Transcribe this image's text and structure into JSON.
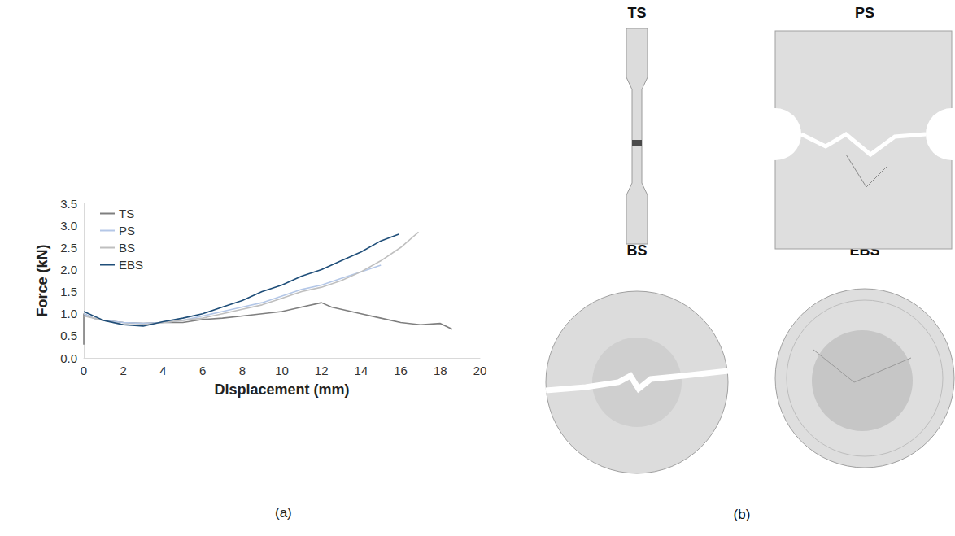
{
  "chart_data": {
    "type": "line",
    "panel_label": "(a)",
    "x_label": "Displacement (mm)",
    "y_label": "Force (kN)",
    "xlim": [
      0,
      20
    ],
    "xticks": [
      0,
      2,
      4,
      6,
      8,
      10,
      12,
      14,
      16,
      18,
      20
    ],
    "ylim": [
      0,
      3.5
    ],
    "yticks": [
      {
        "value": 0,
        "label": "0.0"
      },
      0.5,
      {
        "value": 1,
        "label": "1.0"
      },
      1.5,
      {
        "value": 2,
        "label": "2.0"
      },
      2.5,
      {
        "value": 3,
        "label": "3.0"
      },
      3.5
    ],
    "grid": false,
    "legend": "top-left",
    "series": [
      {
        "name": "TS",
        "color": "#7f7f7f",
        "x": [
          0,
          0,
          0.5,
          1,
          2,
          3,
          4,
          5,
          6,
          7,
          8,
          9,
          10,
          11,
          12,
          12.5,
          13.5,
          14,
          15,
          16,
          17,
          18,
          18.6
        ],
        "values": [
          0.3,
          1.0,
          0.9,
          0.85,
          0.8,
          0.78,
          0.8,
          0.8,
          0.87,
          0.9,
          0.95,
          1.0,
          1.05,
          1.15,
          1.25,
          1.15,
          1.05,
          1.0,
          0.9,
          0.8,
          0.75,
          0.78,
          0.65
        ]
      },
      {
        "name": "PS",
        "color": "#b4c7e7",
        "x": [
          0,
          0.5,
          1,
          2,
          3,
          4,
          5,
          6,
          7,
          8,
          9,
          10,
          11,
          12,
          13,
          14,
          15
        ],
        "values": [
          1.0,
          0.9,
          0.85,
          0.8,
          0.78,
          0.8,
          0.85,
          0.95,
          1.05,
          1.15,
          1.25,
          1.4,
          1.55,
          1.65,
          1.8,
          1.95,
          2.1
        ]
      },
      {
        "name": "BS",
        "color": "#bfbfbf",
        "x": [
          0,
          1,
          2,
          3,
          4,
          5,
          6,
          7,
          8,
          9,
          10,
          11,
          12,
          13,
          14,
          15,
          16,
          16.9
        ],
        "values": [
          0.95,
          0.85,
          0.75,
          0.75,
          0.8,
          0.85,
          0.9,
          1.0,
          1.1,
          1.2,
          1.35,
          1.5,
          1.6,
          1.75,
          1.95,
          2.2,
          2.5,
          2.85
        ]
      },
      {
        "name": "EBS",
        "color": "#1f4e79",
        "x": [
          0,
          1,
          2,
          3,
          4,
          5,
          6,
          7,
          8,
          9,
          10,
          11,
          12,
          13,
          14,
          15,
          15.9
        ],
        "values": [
          1.05,
          0.85,
          0.75,
          0.72,
          0.82,
          0.9,
          1.0,
          1.15,
          1.3,
          1.5,
          1.65,
          1.85,
          2.0,
          2.2,
          2.4,
          2.65,
          2.8
        ]
      }
    ]
  },
  "specimens": {
    "panel_label": "(b)",
    "labels": [
      "TS",
      "PS",
      "BS",
      "EBS"
    ]
  }
}
